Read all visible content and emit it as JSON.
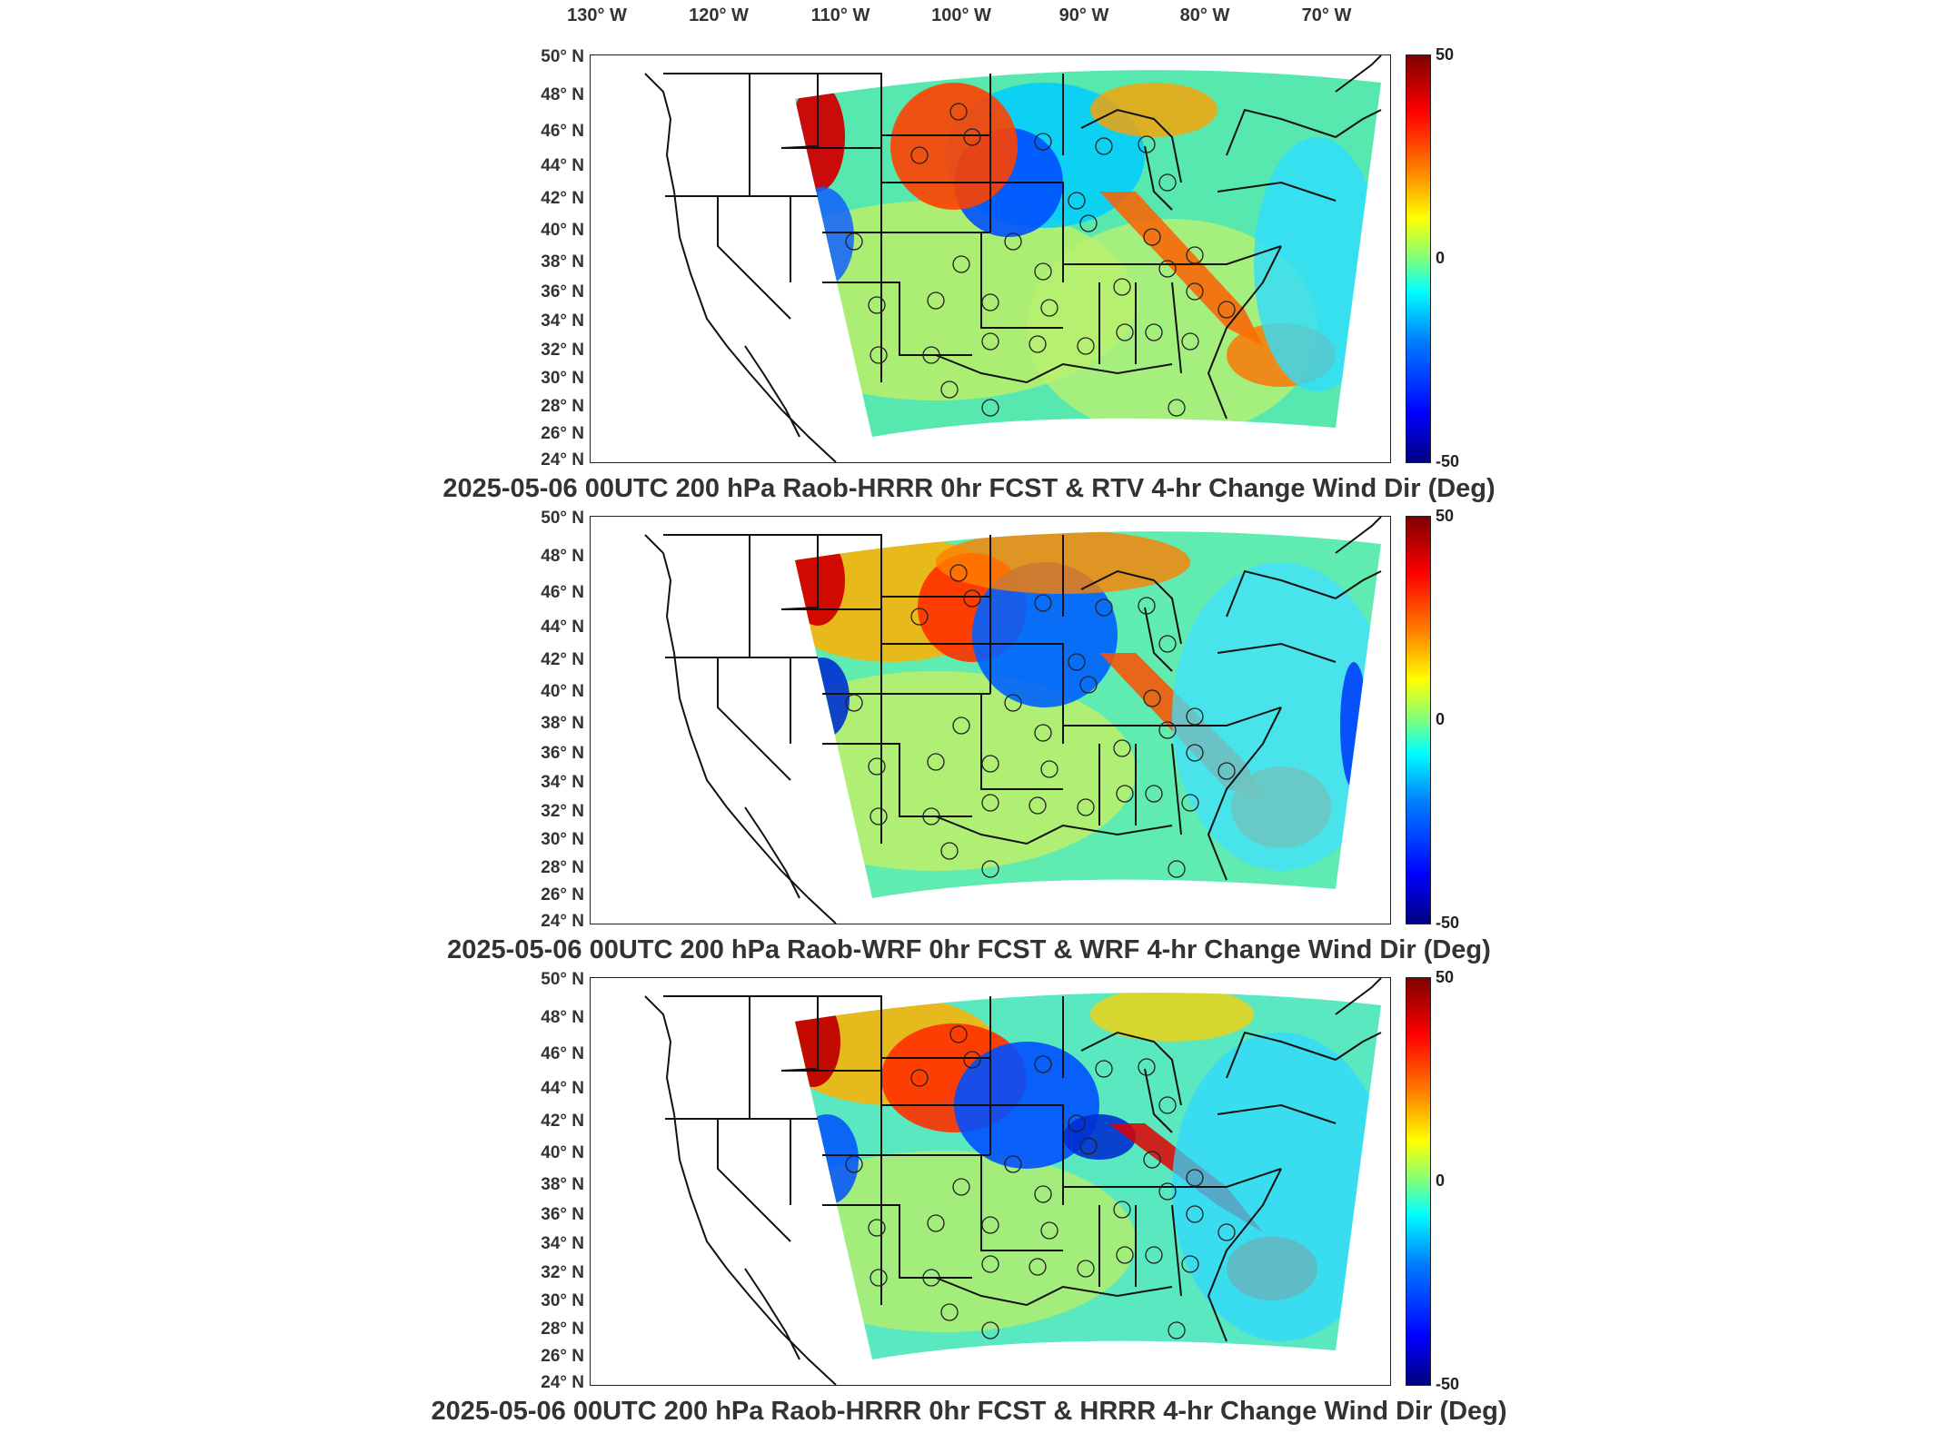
{
  "longitude_labels": [
    "130° W",
    "120° W",
    "110° W",
    "100° W",
    "90° W",
    "80° W",
    "70° W"
  ],
  "latitude_labels": [
    "50° N",
    "48° N",
    "46° N",
    "44° N",
    "42° N",
    "40° N",
    "38° N",
    "36° N",
    "34° N",
    "32° N",
    "30° N",
    "28° N",
    "26° N",
    "24° N"
  ],
  "colorbar": {
    "max_label": "50",
    "mid_label": "0",
    "min_label": "-50",
    "colormap": [
      "#00007f",
      "#0000ff",
      "#007fff",
      "#00ffff",
      "#7fff7f",
      "#ffff00",
      "#ff7f00",
      "#ff0000",
      "#7f0000"
    ]
  },
  "panels": [
    {
      "title": "2025-05-06 00UTC 200 hPa Raob-HRRR 0hr FCST & RTV 4-hr Change Wind Dir (Deg)"
    },
    {
      "title": "2025-05-06 00UTC 200 hPa Raob-WRF 0hr FCST & WRF 4-hr Change Wind Dir (Deg)"
    },
    {
      "title": "2025-05-06 00UTC 200 hPa Raob-HRRR 0hr FCST & HRRR 4-hr Change Wind Dir (Deg)"
    }
  ]
}
